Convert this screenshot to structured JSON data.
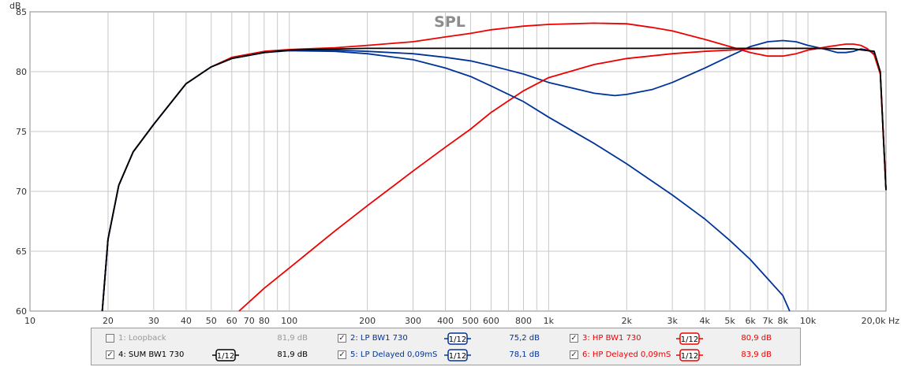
{
  "chart_data": {
    "type": "line",
    "title": "SPL",
    "ylabel": "dB",
    "xunit": "Hz",
    "xscale": "log",
    "xlim": [
      10,
      20000
    ],
    "ylim": [
      60,
      85
    ],
    "grid": true,
    "yticks": [
      "60",
      "65",
      "70",
      "75",
      "80",
      "85"
    ],
    "xticks": [
      {
        "v": 10,
        "t": "10"
      },
      {
        "v": 20,
        "t": "20"
      },
      {
        "v": 30,
        "t": "30"
      },
      {
        "v": 40,
        "t": "40"
      },
      {
        "v": 50,
        "t": "50"
      },
      {
        "v": 60,
        "t": "60"
      },
      {
        "v": 70,
        "t": "70"
      },
      {
        "v": 80,
        "t": "80"
      },
      {
        "v": 100,
        "t": "100"
      },
      {
        "v": 200,
        "t": "200"
      },
      {
        "v": 300,
        "t": "300"
      },
      {
        "v": 400,
        "t": "400"
      },
      {
        "v": 500,
        "t": "500"
      },
      {
        "v": 600,
        "t": "600"
      },
      {
        "v": 800,
        "t": "800"
      },
      {
        "v": 1000,
        "t": "1k"
      },
      {
        "v": 2000,
        "t": "2k"
      },
      {
        "v": 3000,
        "t": "3k"
      },
      {
        "v": 4000,
        "t": "4k"
      },
      {
        "v": 5000,
        "t": "5k"
      },
      {
        "v": 6000,
        "t": "6k"
      },
      {
        "v": 7000,
        "t": "7k"
      },
      {
        "v": 8000,
        "t": "8k"
      },
      {
        "v": 10000,
        "t": "10k"
      },
      {
        "v": 20000,
        "t": "20,0k Hz"
      }
    ],
    "series": [
      {
        "name": "LP BW1 730",
        "color": "#003399",
        "points": [
          [
            19,
            60
          ],
          [
            20,
            66
          ],
          [
            22,
            70.5
          ],
          [
            25,
            73.3
          ],
          [
            30,
            75.6
          ],
          [
            40,
            79
          ],
          [
            50,
            80.4
          ],
          [
            60,
            81.1
          ],
          [
            80,
            81.6
          ],
          [
            100,
            81.75
          ],
          [
            150,
            81.7
          ],
          [
            200,
            81.5
          ],
          [
            300,
            81
          ],
          [
            400,
            80.3
          ],
          [
            500,
            79.6
          ],
          [
            600,
            78.8
          ],
          [
            800,
            77.5
          ],
          [
            1000,
            76.2
          ],
          [
            1500,
            74
          ],
          [
            2000,
            72.3
          ],
          [
            3000,
            69.7
          ],
          [
            4000,
            67.7
          ],
          [
            5000,
            65.9
          ],
          [
            6000,
            64.3
          ],
          [
            7000,
            62.7
          ],
          [
            8000,
            61.3
          ],
          [
            8500,
            60
          ]
        ]
      },
      {
        "name": "HP BW1 730",
        "color": "#ee0000",
        "points": [
          [
            64,
            60
          ],
          [
            80,
            61.9
          ],
          [
            100,
            63.6
          ],
          [
            150,
            66.7
          ],
          [
            200,
            68.8
          ],
          [
            300,
            71.7
          ],
          [
            400,
            73.7
          ],
          [
            500,
            75.2
          ],
          [
            600,
            76.6
          ],
          [
            800,
            78.4
          ],
          [
            1000,
            79.5
          ],
          [
            1500,
            80.6
          ],
          [
            2000,
            81.1
          ],
          [
            3000,
            81.5
          ],
          [
            4000,
            81.7
          ],
          [
            5000,
            81.8
          ],
          [
            6000,
            81.9
          ],
          [
            8000,
            81.95
          ],
          [
            10000,
            81.95
          ],
          [
            15000,
            81.9
          ],
          [
            18000,
            81.7
          ],
          [
            19000,
            80
          ],
          [
            20000,
            70.1
          ]
        ]
      },
      {
        "name": "SUM BW1 730",
        "color": "#000000",
        "points": [
          [
            19,
            60
          ],
          [
            20,
            66
          ],
          [
            22,
            70.5
          ],
          [
            25,
            73.3
          ],
          [
            30,
            75.6
          ],
          [
            40,
            79
          ],
          [
            50,
            80.4
          ],
          [
            60,
            81.1
          ],
          [
            80,
            81.6
          ],
          [
            100,
            81.8
          ],
          [
            150,
            81.9
          ],
          [
            200,
            81.95
          ],
          [
            500,
            81.95
          ],
          [
            1000,
            81.95
          ],
          [
            2000,
            81.95
          ],
          [
            5000,
            81.95
          ],
          [
            10000,
            81.95
          ],
          [
            15000,
            81.9
          ],
          [
            18000,
            81.7
          ],
          [
            19000,
            80
          ],
          [
            20000,
            70.1
          ]
        ]
      },
      {
        "name": "LP Delayed 0,09mS",
        "color": "#003399",
        "points": [
          [
            19,
            60
          ],
          [
            20,
            66
          ],
          [
            22,
            70.5
          ],
          [
            25,
            73.3
          ],
          [
            30,
            75.6
          ],
          [
            40,
            79
          ],
          [
            50,
            80.4
          ],
          [
            60,
            81.1
          ],
          [
            80,
            81.6
          ],
          [
            100,
            81.8
          ],
          [
            150,
            81.8
          ],
          [
            200,
            81.7
          ],
          [
            300,
            81.5
          ],
          [
            400,
            81.2
          ],
          [
            500,
            80.9
          ],
          [
            600,
            80.5
          ],
          [
            800,
            79.8
          ],
          [
            1000,
            79.1
          ],
          [
            1500,
            78.2
          ],
          [
            1800,
            78
          ],
          [
            2000,
            78.1
          ],
          [
            2500,
            78.5
          ],
          [
            3000,
            79.1
          ],
          [
            4000,
            80.3
          ],
          [
            5000,
            81.3
          ],
          [
            6000,
            82.1
          ],
          [
            7000,
            82.5
          ],
          [
            8000,
            82.6
          ],
          [
            9000,
            82.5
          ],
          [
            10000,
            82.2
          ],
          [
            11000,
            82
          ],
          [
            12000,
            81.8
          ],
          [
            13000,
            81.6
          ],
          [
            14000,
            81.6
          ],
          [
            15000,
            81.7
          ],
          [
            16000,
            81.9
          ],
          [
            17000,
            81.8
          ],
          [
            18000,
            81.5
          ],
          [
            19000,
            80
          ],
          [
            20000,
            70.1
          ]
        ]
      },
      {
        "name": "HP Delayed 0,09mS",
        "color": "#ee0000",
        "points": [
          [
            19,
            60
          ],
          [
            20,
            66
          ],
          [
            22,
            70.5
          ],
          [
            25,
            73.3
          ],
          [
            30,
            75.6
          ],
          [
            40,
            79
          ],
          [
            50,
            80.4
          ],
          [
            60,
            81.2
          ],
          [
            80,
            81.7
          ],
          [
            100,
            81.85
          ],
          [
            150,
            82
          ],
          [
            200,
            82.2
          ],
          [
            300,
            82.5
          ],
          [
            400,
            82.9
          ],
          [
            500,
            83.2
          ],
          [
            600,
            83.5
          ],
          [
            800,
            83.8
          ],
          [
            1000,
            83.95
          ],
          [
            1500,
            84.05
          ],
          [
            2000,
            84
          ],
          [
            2500,
            83.7
          ],
          [
            3000,
            83.4
          ],
          [
            4000,
            82.7
          ],
          [
            5000,
            82.1
          ],
          [
            6000,
            81.6
          ],
          [
            7000,
            81.3
          ],
          [
            8000,
            81.3
          ],
          [
            9000,
            81.5
          ],
          [
            10000,
            81.8
          ],
          [
            12000,
            82.1
          ],
          [
            14000,
            82.3
          ],
          [
            15000,
            82.3
          ],
          [
            16000,
            82.2
          ],
          [
            17000,
            81.9
          ],
          [
            18000,
            81.4
          ],
          [
            19000,
            79.8
          ],
          [
            20000,
            70.1
          ]
        ]
      }
    ]
  },
  "legend": {
    "items": [
      {
        "label": "1: Loopback",
        "value": "81,9 dB",
        "checked": "",
        "color": "#999999",
        "smoothing": ""
      },
      {
        "label": "2: LP BW1 730",
        "value": "75,2 dB",
        "checked": "✓",
        "color": "#003399",
        "smoothing": "1/12"
      },
      {
        "label": "3: HP BW1 730",
        "value": "80,9 dB",
        "checked": "✓",
        "color": "#ee0000",
        "smoothing": "1/12"
      },
      {
        "label": "4: SUM BW1 730",
        "value": "81,9 dB",
        "checked": "✓",
        "color": "#000000",
        "smoothing": "1/12"
      },
      {
        "label": "5: LP Delayed 0,09mS",
        "value": "78,1 dB",
        "checked": "✓",
        "color": "#003399",
        "smoothing": "1/12"
      },
      {
        "label": "6: HP Delayed 0,09mS",
        "value": "83,9 dB",
        "checked": "✓",
        "color": "#ee0000",
        "smoothing": "1/12"
      }
    ]
  }
}
